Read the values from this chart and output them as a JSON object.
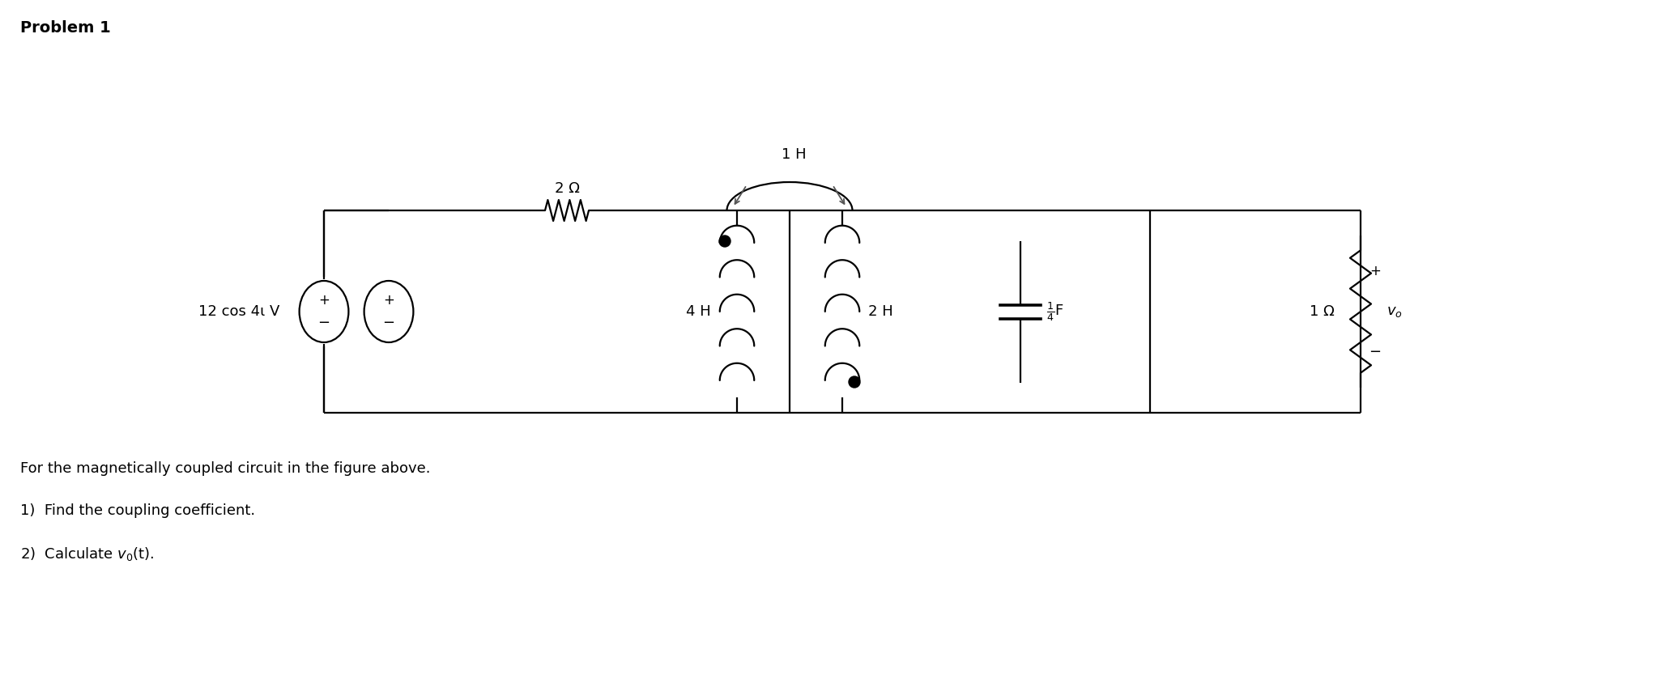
{
  "title": "Problem 1",
  "description_line1": "For the magnetically coupled circuit in the figure above.",
  "item1": "Find the coupling coefficient.",
  "item2": "Calculate v₀(t).",
  "bg_color": "#ffffff",
  "line_color": "#000000",
  "font_color": "#000000",
  "figsize": [
    20.46,
    8.6
  ],
  "dpi": 100,
  "source_label": "12 cos 4ι V",
  "r1_label": "2 Ω",
  "l1_label": "4 H",
  "l2_label": "2 H",
  "mutual_label": "1 H",
  "cap_label": "$\\frac{1}{4}$F",
  "r2_label": "1 Ω",
  "vo_label": "$v_o$",
  "lw": 1.6
}
